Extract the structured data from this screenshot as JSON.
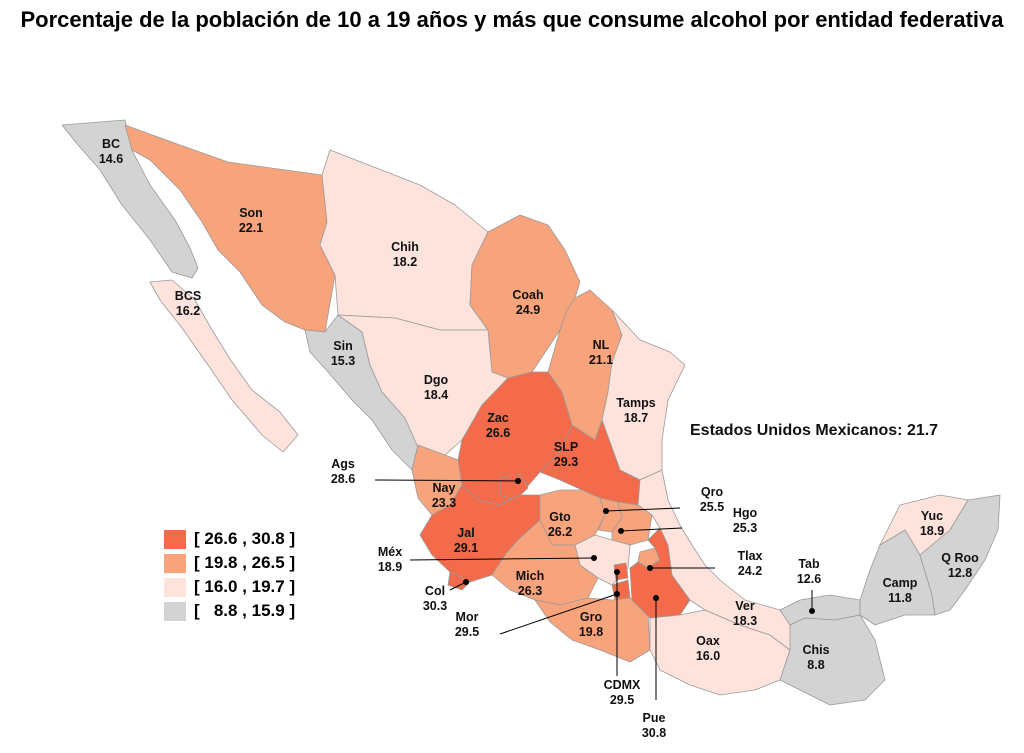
{
  "title": "Porcentaje de la población de 10 a 19 años y más que consume alcohol por entidad federativa",
  "national": {
    "text": "Estados Unidos Mexicanos: 21.7",
    "value": 21.7
  },
  "legend": [
    {
      "label": "[ 26.6 , 30.8 ]",
      "color": "#f36b4a"
    },
    {
      "label": "[ 19.8 , 26.5 ]",
      "color": "#f7a47d"
    },
    {
      "label": "[ 16.0 , 19.7 ]",
      "color": "#fde3db"
    },
    {
      "label": "[   8.8 , 15.9 ]",
      "color": "#d3d3d3"
    }
  ],
  "states": {
    "BC": {
      "abbr": "BC",
      "value": "14.6"
    },
    "Son": {
      "abbr": "Son",
      "value": "22.1"
    },
    "Chih": {
      "abbr": "Chih",
      "value": "18.2"
    },
    "Coah": {
      "abbr": "Coah",
      "value": "24.9"
    },
    "BCS": {
      "abbr": "BCS",
      "value": "16.2"
    },
    "Sin": {
      "abbr": "Sin",
      "value": "15.3"
    },
    "Dgo": {
      "abbr": "Dgo",
      "value": "18.4"
    },
    "NL": {
      "abbr": "NL",
      "value": "21.1"
    },
    "Tamps": {
      "abbr": "Tamps",
      "value": "18.7"
    },
    "Zac": {
      "abbr": "Zac",
      "value": "26.6"
    },
    "SLP": {
      "abbr": "SLP",
      "value": "29.3"
    },
    "Ags": {
      "abbr": "Ags",
      "value": "28.6"
    },
    "Nay": {
      "abbr": "Nay",
      "value": "23.3"
    },
    "Jal": {
      "abbr": "Jal",
      "value": "29.1"
    },
    "Gto": {
      "abbr": "Gto",
      "value": "26.2"
    },
    "Qro": {
      "abbr": "Qro",
      "value": "25.5"
    },
    "Hgo": {
      "abbr": "Hgo",
      "value": "25.3"
    },
    "Mex": {
      "abbr": "Méx",
      "value": "18.9"
    },
    "Tlax": {
      "abbr": "Tlax",
      "value": "24.2"
    },
    "Col": {
      "abbr": "Col",
      "value": "30.3"
    },
    "Mich": {
      "abbr": "Mich",
      "value": "26.3"
    },
    "Mor": {
      "abbr": "Mor",
      "value": "29.5"
    },
    "Gro": {
      "abbr": "Gro",
      "value": "19.8"
    },
    "CDMX": {
      "abbr": "CDMX",
      "value": "29.5"
    },
    "Pue": {
      "abbr": "Pue",
      "value": "30.8"
    },
    "Oax": {
      "abbr": "Oax",
      "value": "16.0"
    },
    "Ver": {
      "abbr": "Ver",
      "value": "18.3"
    },
    "Tab": {
      "abbr": "Tab",
      "value": "12.6"
    },
    "Chis": {
      "abbr": "Chis",
      "value": "8.8"
    },
    "Camp": {
      "abbr": "Camp",
      "value": "11.8"
    },
    "Yuc": {
      "abbr": "Yuc",
      "value": "18.9"
    },
    "QRoo": {
      "abbr": "Q Roo",
      "value": "12.8"
    }
  }
}
